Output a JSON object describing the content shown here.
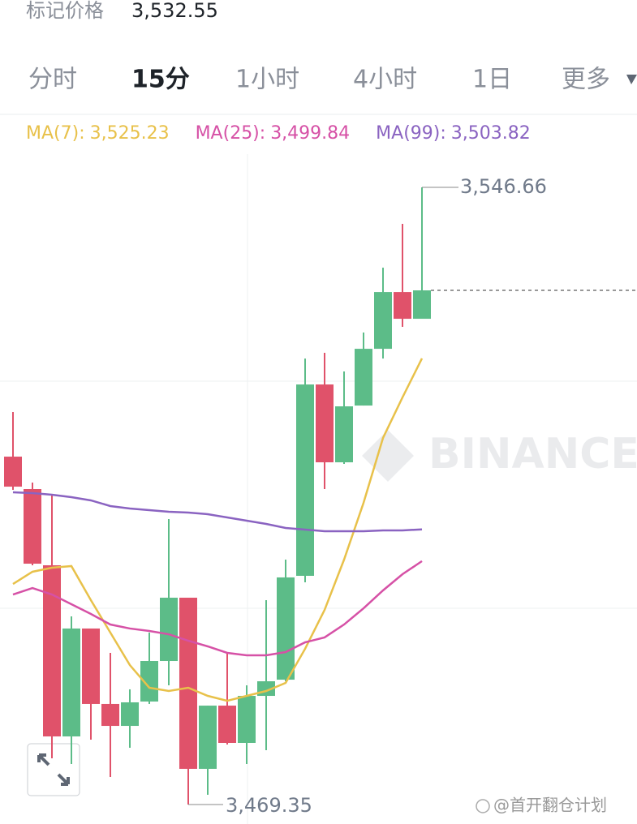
{
  "header": {
    "label": "标记价格",
    "value": "3,532.55"
  },
  "tabs": [
    "分时",
    "15分",
    "1小时",
    "4小时",
    "1日",
    "更多"
  ],
  "watermark": "BINANCE",
  "credit": "@首开翻仓计划",
  "chart_data": {
    "type": "candlestick",
    "ylim": [
      3466.91,
      3550.83
    ],
    "up_color": "#5cbc88",
    "down_color": "#e0526a",
    "high_label": "3,546.66",
    "low_label": "3,469.35",
    "candles": {
      "open": [
        3512.93,
        3508.87,
        3499.32,
        3477.88,
        3491.4,
        3481.95,
        3479.2,
        3482.25,
        3487.33,
        3495.26,
        3473.82,
        3481.74,
        3477.07,
        3482.96,
        3484.99,
        3498.0,
        3521.97,
        3512.22,
        3519.33,
        3526.44,
        3533.55,
        3530.2
      ],
      "high": [
        3518.52,
        3509.68,
        3508.16,
        3492.92,
        3491.4,
        3488.35,
        3483.78,
        3490.89,
        3505.11,
        3495.26,
        3481.74,
        3488.35,
        3484.28,
        3494.95,
        3500.03,
        3525.22,
        3525.94,
        3523.6,
        3528.48,
        3536.6,
        3542.09,
        3546.66
      ],
      "low": [
        3508.77,
        3499.32,
        3475.14,
        3474.43,
        3477.48,
        3472.8,
        3476.46,
        3481.95,
        3484.28,
        3469.35,
        3470.57,
        3476.87,
        3474.43,
        3476.16,
        3484.79,
        3497.19,
        3508.87,
        3512.02,
        3519.33,
        3525.22,
        3529.19,
        3530.2
      ],
      "close": [
        3509.17,
        3499.52,
        3477.88,
        3491.4,
        3481.95,
        3479.2,
        3482.15,
        3487.33,
        3495.26,
        3473.82,
        3481.74,
        3477.07,
        3482.96,
        3484.79,
        3497.8,
        3521.97,
        3512.22,
        3519.23,
        3526.44,
        3533.55,
        3530.2,
        3533.76
      ]
    },
    "series": [
      {
        "name": "MA(7):",
        "last_label": "3,525.23",
        "color": "#e8c14a",
        "values": [
          3496.98,
          3498.51,
          3499.01,
          3499.22,
          3494.95,
          3490.89,
          3486.82,
          3483.98,
          3483.57,
          3483.98,
          3482.96,
          3482.35,
          3482.96,
          3483.57,
          3484.59,
          3488.86,
          3493.73,
          3500.03,
          3507.14,
          3515.27,
          3520.35,
          3525.23
        ]
      },
      {
        "name": "MA(25):",
        "last_label": "3,499.84",
        "color": "#d651a6",
        "values": [
          3495.66,
          3496.47,
          3495.66,
          3494.44,
          3493.22,
          3491.9,
          3491.4,
          3491.09,
          3490.68,
          3489.87,
          3489.16,
          3488.35,
          3488.04,
          3488.04,
          3488.45,
          3489.67,
          3490.28,
          3491.9,
          3493.93,
          3496.17,
          3498.2,
          3499.84
        ]
      },
      {
        "name": "MA(99):",
        "last_label": "3,503.82",
        "color": "#8a63c1",
        "values": [
          3508.46,
          3508.36,
          3508.16,
          3507.85,
          3507.45,
          3506.74,
          3506.43,
          3506.23,
          3506.02,
          3505.92,
          3505.72,
          3505.31,
          3504.91,
          3504.5,
          3503.99,
          3503.79,
          3503.59,
          3503.59,
          3503.59,
          3503.69,
          3503.69,
          3503.82
        ]
      }
    ]
  }
}
